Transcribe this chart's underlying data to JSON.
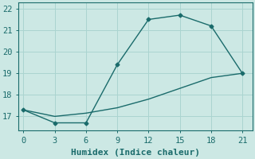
{
  "xlabel": "Humidex (Indice chaleur)",
  "bg_color": "#cce8e4",
  "line_color": "#1a6b6b",
  "grid_color": "#aad4d0",
  "line1_x": [
    0,
    3,
    6,
    9,
    12,
    15,
    18,
    21
  ],
  "line1_y": [
    17.3,
    16.7,
    16.7,
    19.4,
    21.5,
    21.7,
    21.2,
    19.0
  ],
  "line2_x": [
    0,
    3,
    6,
    9,
    12,
    15,
    18,
    21
  ],
  "line2_y": [
    17.3,
    17.0,
    17.15,
    17.4,
    17.8,
    18.3,
    18.8,
    19.0
  ],
  "xlim": [
    -0.5,
    22.0
  ],
  "ylim": [
    16.35,
    22.3
  ],
  "xticks": [
    0,
    3,
    6,
    9,
    12,
    15,
    18,
    21
  ],
  "yticks": [
    17,
    18,
    19,
    20,
    21,
    22
  ],
  "marker": "D",
  "markersize": 2.5,
  "linewidth": 1.0,
  "font_family": "monospace",
  "xlabel_fontsize": 8,
  "tick_fontsize": 7.5
}
